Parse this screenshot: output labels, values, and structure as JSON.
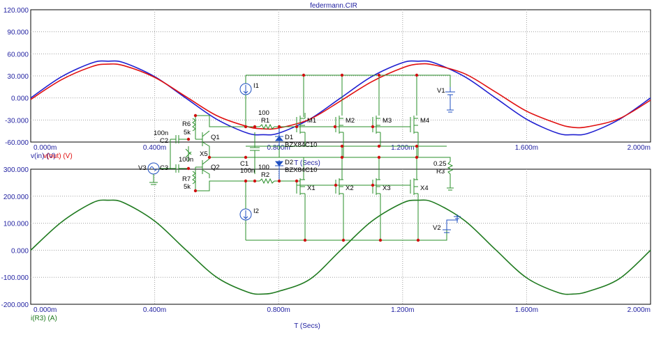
{
  "window": {
    "title": "federmann.CIR"
  },
  "colors": {
    "frame": "#000000",
    "grid": "#a0a0a0",
    "vin": "#1f1fd0",
    "vout": "#e01010",
    "ir3": "#1f7a1f",
    "wire": "#2a8f2a",
    "node": "#d01010",
    "label_blue": "#1f1fa0",
    "label_red": "#e01010",
    "label_green": "#1f7a1f"
  },
  "chart_data": [
    {
      "type": "line",
      "title": "federmann.CIR",
      "xlabel": "T (Secs)",
      "ylabel": "",
      "xlim": [
        0,
        2.0
      ],
      "ylim": [
        -60,
        120
      ],
      "x_tick_labels": [
        "0.000m",
        "0.400m",
        "0.800m",
        "1.200m",
        "1.600m",
        "2.000m"
      ],
      "y_tick_labels": [
        "120.000",
        "90.000",
        "60.000",
        "30.000",
        "0.000",
        "-30.000",
        "-60.000"
      ],
      "grid": true,
      "series": [
        {
          "name": "v(in) (V)",
          "color_key": "vin",
          "x": [
            0,
            0.1,
            0.2,
            0.25,
            0.3,
            0.4,
            0.5,
            0.6,
            0.7,
            0.75,
            0.8,
            0.9,
            1.0,
            1.1,
            1.2,
            1.25,
            1.3,
            1.4,
            1.5,
            1.6,
            1.7,
            1.75,
            1.8,
            1.9,
            2.0
          ],
          "values": [
            0,
            29,
            48,
            50,
            48,
            29,
            0,
            -29,
            -48,
            -50,
            -48,
            -29,
            0,
            29,
            48,
            50,
            48,
            29,
            0,
            -29,
            -48,
            -50,
            -48,
            -29,
            0
          ]
        },
        {
          "name": "v(out) (V)",
          "color_key": "vout",
          "x": [
            0,
            0.1,
            0.2,
            0.25,
            0.3,
            0.4,
            0.5,
            0.6,
            0.7,
            0.75,
            0.8,
            0.9,
            1.0,
            1.1,
            1.2,
            1.25,
            1.3,
            1.4,
            1.5,
            1.6,
            1.7,
            1.75,
            1.8,
            1.9,
            2.0
          ],
          "values": [
            -2,
            25,
            43,
            46,
            44,
            28,
            2,
            -24,
            -39,
            -42,
            -41,
            -29,
            -4,
            22,
            41,
            46,
            45,
            33,
            8,
            -18,
            -35,
            -40,
            -39,
            -28,
            -3
          ]
        }
      ]
    },
    {
      "type": "line",
      "title": "",
      "xlabel": "T (Secs)",
      "ylabel": "",
      "xlim": [
        0,
        2.0
      ],
      "ylim": [
        -200,
        300
      ],
      "x_tick_labels": [
        "0.000m",
        "0.400m",
        "0.800m",
        "1.200m",
        "1.600m",
        "2.000m"
      ],
      "y_tick_labels": [
        "300.000",
        "200.000",
        "100.000",
        "0.000",
        "-100.000",
        "-200.000"
      ],
      "grid": true,
      "series": [
        {
          "name": "i(R3) (A)",
          "color_key": "ir3",
          "x": [
            0,
            0.1,
            0.2,
            0.25,
            0.3,
            0.4,
            0.5,
            0.6,
            0.7,
            0.75,
            0.8,
            0.9,
            1.0,
            1.1,
            1.2,
            1.25,
            1.3,
            1.4,
            1.5,
            1.6,
            1.7,
            1.75,
            1.8,
            1.9,
            2.0
          ],
          "values": [
            0,
            105,
            176,
            185,
            176,
            108,
            2,
            -100,
            -155,
            -162,
            -152,
            -108,
            0,
            107,
            175,
            185,
            177,
            110,
            2,
            -102,
            -156,
            -162,
            -152,
            -105,
            0
          ]
        }
      ]
    }
  ],
  "schematic": {
    "labels": {
      "C2": "C2",
      "C2_val": "100n",
      "C3": "C3",
      "C3_val": "100n",
      "R6": "R6",
      "R6_val": "5k",
      "R7": "R7",
      "R7_val": "5k",
      "Q1": "Q1",
      "Q2": "Q2",
      "X5": "X5",
      "V3": "V3",
      "I1": "I1",
      "I2": "I2",
      "C1": "C1",
      "C1_val": "100n",
      "R1_val": "100",
      "R1": "R1",
      "R2_val": "100",
      "R2": "R2",
      "D1": "D1",
      "D1_part": "BZX84C10",
      "D2": "D2",
      "D2_part": "BZX84C10",
      "M1": "M1",
      "M2": "M2",
      "M3": "M3",
      "M4": "M4",
      "X1": "X1",
      "X2": "X2",
      "X3": "X3",
      "X4": "X4",
      "V1": "V1",
      "V2": "V2",
      "R3": "R3",
      "R3_val": "0.25"
    }
  }
}
